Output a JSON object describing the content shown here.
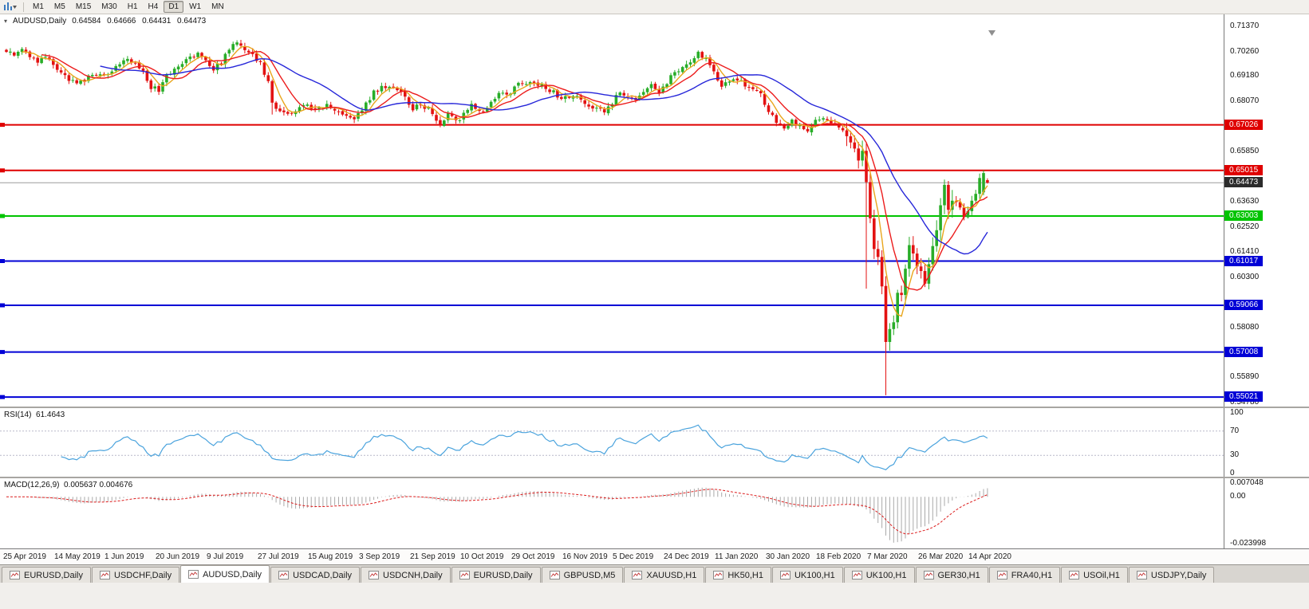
{
  "toolbar": {
    "timeframes": [
      "M1",
      "M5",
      "M15",
      "M30",
      "H1",
      "H4",
      "D1",
      "W1",
      "MN"
    ],
    "active_timeframe": "D1"
  },
  "chart": {
    "symbol_title": "AUDUSD,Daily",
    "ohlc_text": "0.64584 0.64666 0.64431 0.64473",
    "price_scale": [
      "0.71370",
      "0.70260",
      "0.69180",
      "0.68070",
      "0.65850",
      "0.63630",
      "0.62520",
      "0.61410",
      "0.60300",
      "0.58080",
      "0.55890",
      "0.54780"
    ],
    "hlines": [
      {
        "price": 0.67026,
        "label": "0.67026",
        "color": "#df0000"
      },
      {
        "price": 0.65015,
        "label": "0.65015",
        "color": "#df0000"
      },
      {
        "price": 0.63003,
        "label": "0.63003",
        "color": "#00c400"
      },
      {
        "price": 0.61017,
        "label": "0.61017",
        "color": "#0000d6"
      },
      {
        "price": 0.59066,
        "label": "0.59066",
        "color": "#0000d6"
      },
      {
        "price": 0.57008,
        "label": "0.57008",
        "color": "#0000d6"
      },
      {
        "price": 0.55021,
        "label": "0.55021",
        "color": "#0000d6"
      }
    ],
    "current_price": {
      "value": 0.64473,
      "label": "0.64473",
      "line_color": "#9a9a9a",
      "tag_color": "#2b2b2b"
    },
    "date_labels": [
      "25 Apr 2019",
      "14 May 2019",
      "1 Jun 2019",
      "20 Jun 2019",
      "9 Jul 2019",
      "27 Jul 2019",
      "15 Aug 2019",
      "3 Sep 2019",
      "21 Sep 2019",
      "10 Oct 2019",
      "29 Oct 2019",
      "16 Nov 2019",
      "5 Dec 2019",
      "24 Dec 2019",
      "11 Jan 2020",
      "30 Jan 2020",
      "18 Feb 2020",
      "7 Mar 2020",
      "26 Mar 2020",
      "14 Apr 2020"
    ]
  },
  "indicators": {
    "rsi": {
      "name": "RSI(14)",
      "value": "61.4643",
      "color": "#4aa3dd",
      "levels": [
        70,
        30
      ],
      "scale": [
        {
          "value": 100,
          "label": "100"
        },
        {
          "value": 70,
          "label": "70"
        },
        {
          "value": 30,
          "label": "30"
        },
        {
          "value": 0,
          "label": "0"
        }
      ]
    },
    "macd": {
      "name": "MACD(12,26,9)",
      "values": "0.005637 0.004676",
      "histogram_color": "#a9a9a9",
      "signal_color": "#dc1c1c",
      "scale": [
        {
          "value": 0.007048,
          "label": "0.007048"
        },
        {
          "value": 0,
          "label": "0.00"
        },
        {
          "value": -0.023998,
          "label": "-0.023998"
        }
      ]
    }
  },
  "chart_data": {
    "type": "candlestick",
    "symbol": "AUDUSD",
    "timeframe": "Daily",
    "bars": 252,
    "ylim": [
      0.54603,
      0.71897
    ],
    "macd_scale": {
      "min": -0.023998,
      "max": 0.007048
    },
    "rsi_period": 14,
    "macd_params": [
      12,
      26,
      9
    ],
    "colors": {
      "bull": "#28ad28",
      "bear": "#e31212"
    },
    "moving_averages": [
      {
        "period": 5,
        "color": "#e9a61c"
      },
      {
        "period": 10,
        "color": "#ec1c1c"
      },
      {
        "period": 25,
        "color": "#2626d9"
      }
    ],
    "close_anchors": [
      [
        0,
        0.7035
      ],
      [
        2,
        0.7012
      ],
      [
        4,
        0.704
      ],
      [
        6,
        0.6995
      ],
      [
        8,
        0.6985
      ],
      [
        10,
        0.6998
      ],
      [
        13,
        0.6942
      ],
      [
        15,
        0.692
      ],
      [
        18,
        0.6878
      ],
      [
        20,
        0.6902
      ],
      [
        23,
        0.6925
      ],
      [
        26,
        0.6932
      ],
      [
        29,
        0.6972
      ],
      [
        31,
        0.7
      ],
      [
        33,
        0.6975
      ],
      [
        35,
        0.6945
      ],
      [
        37,
        0.6868
      ],
      [
        39,
        0.6858
      ],
      [
        41,
        0.6922
      ],
      [
        44,
        0.6962
      ],
      [
        46,
        0.6992
      ],
      [
        49,
        0.7015
      ],
      [
        51,
        0.6988
      ],
      [
        53,
        0.6952
      ],
      [
        55,
        0.6978
      ],
      [
        57,
        0.7042
      ],
      [
        59,
        0.7062
      ],
      [
        61,
        0.7035
      ],
      [
        63,
        0.7008
      ],
      [
        65,
        0.6972
      ],
      [
        67,
        0.6892
      ],
      [
        68,
        0.68
      ],
      [
        70,
        0.676
      ],
      [
        72,
        0.6752
      ],
      [
        74,
        0.6772
      ],
      [
        76,
        0.6795
      ],
      [
        78,
        0.6782
      ],
      [
        80,
        0.6768
      ],
      [
        82,
        0.6788
      ],
      [
        84,
        0.6758
      ],
      [
        86,
        0.6742
      ],
      [
        89,
        0.6728
      ],
      [
        91,
        0.6765
      ],
      [
        94,
        0.6848
      ],
      [
        97,
        0.6872
      ],
      [
        100,
        0.6858
      ],
      [
        102,
        0.6822
      ],
      [
        104,
        0.6768
      ],
      [
        106,
        0.6795
      ],
      [
        108,
        0.6768
      ],
      [
        111,
        0.67
      ],
      [
        113,
        0.6748
      ],
      [
        116,
        0.6722
      ],
      [
        119,
        0.6792
      ],
      [
        121,
        0.6758
      ],
      [
        123,
        0.6778
      ],
      [
        126,
        0.6852
      ],
      [
        129,
        0.6842
      ],
      [
        131,
        0.6898
      ],
      [
        133,
        0.6888
      ],
      [
        136,
        0.6882
      ],
      [
        139,
        0.6858
      ],
      [
        141,
        0.6832
      ],
      [
        144,
        0.6812
      ],
      [
        146,
        0.6832
      ],
      [
        148,
        0.6788
      ],
      [
        151,
        0.6778
      ],
      [
        153,
        0.6762
      ],
      [
        155,
        0.6802
      ],
      [
        157,
        0.6848
      ],
      [
        159,
        0.6828
      ],
      [
        161,
        0.6818
      ],
      [
        163,
        0.6842
      ],
      [
        165,
        0.6882
      ],
      [
        167,
        0.6852
      ],
      [
        169,
        0.6892
      ],
      [
        171,
        0.6932
      ],
      [
        173,
        0.6948
      ],
      [
        175,
        0.6988
      ],
      [
        177,
        0.7022
      ],
      [
        179,
        0.6992
      ],
      [
        181,
        0.6932
      ],
      [
        183,
        0.6868
      ],
      [
        185,
        0.6898
      ],
      [
        187,
        0.6908
      ],
      [
        189,
        0.6878
      ],
      [
        191,
        0.6852
      ],
      [
        193,
        0.6842
      ],
      [
        195,
        0.6758
      ],
      [
        197,
        0.6718
      ],
      [
        199,
        0.6692
      ],
      [
        201,
        0.6718
      ],
      [
        203,
        0.6698
      ],
      [
        205,
        0.6668
      ],
      [
        207,
        0.6722
      ],
      [
        209,
        0.6742
      ],
      [
        211,
        0.6712
      ],
      [
        213,
        0.6688
      ],
      [
        215,
        0.6652
      ],
      [
        217,
        0.6598
      ],
      [
        218,
        0.6545
      ],
      [
        219,
        0.6588
      ],
      [
        220,
        0.645
      ],
      [
        221,
        0.629
      ],
      [
        222,
        0.6155
      ],
      [
        223,
        0.612
      ],
      [
        224,
        0.599
      ],
      [
        225,
        0.5745
      ],
      [
        226,
        0.5802
      ],
      [
        227,
        0.5832
      ],
      [
        228,
        0.5962
      ],
      [
        229,
        0.5952
      ],
      [
        230,
        0.6068
      ],
      [
        231,
        0.6172
      ],
      [
        232,
        0.6135
      ],
      [
        233,
        0.6078
      ],
      [
        234,
        0.6058
      ],
      [
        235,
        0.6002
      ],
      [
        236,
        0.6088
      ],
      [
        237,
        0.6168
      ],
      [
        238,
        0.6238
      ],
      [
        239,
        0.6348
      ],
      [
        240,
        0.6438
      ],
      [
        241,
        0.6328
      ],
      [
        242,
        0.6368
      ],
      [
        243,
        0.6362
      ],
      [
        244,
        0.6338
      ],
      [
        245,
        0.6295
      ],
      [
        246,
        0.6322
      ],
      [
        247,
        0.6368
      ],
      [
        248,
        0.6398
      ],
      [
        249,
        0.6468
      ],
      [
        250,
        0.649
      ],
      [
        251,
        0.64473
      ]
    ],
    "overrides": {
      "68": {
        "o": 0.6895,
        "h": 0.6902,
        "l": 0.6748,
        "c": 0.68
      },
      "220": {
        "o": 0.6588,
        "h": 0.6625,
        "l": 0.598,
        "c": 0.645
      },
      "225": {
        "o": 0.5992,
        "h": 0.6035,
        "l": 0.551,
        "c": 0.5745
      },
      "250": {
        "o": 0.6405,
        "h": 0.6502,
        "l": 0.6392,
        "c": 0.649
      },
      "251": {
        "o": 0.64584,
        "h": 0.64666,
        "l": 0.64431,
        "c": 0.64473
      }
    },
    "current_bar": {
      "open": 0.64584,
      "high": 0.64666,
      "low": 0.64431,
      "close": 0.64473
    }
  },
  "tabs": {
    "items": [
      "EURUSD,Daily",
      "USDCHF,Daily",
      "AUDUSD,Daily",
      "USDCAD,Daily",
      "USDCNH,Daily",
      "EURUSD,Daily",
      "GBPUSD,M5",
      "XAUUSD,H1",
      "HK50,H1",
      "UK100,H1",
      "UK100,H1",
      "GER30,H1",
      "FRA40,H1",
      "USOil,H1",
      "USDJPY,Daily"
    ],
    "active_index": 2
  }
}
